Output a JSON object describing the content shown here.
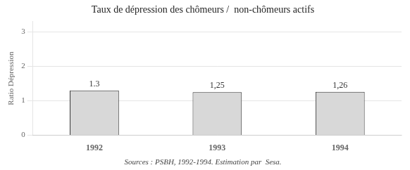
{
  "chart_data": {
    "type": "bar",
    "title": "Taux de dépression des chômeurs /  non-chômeurs actifs",
    "caption": "Sources : PSBH, 1992-1994. Estimation par  Sesa.",
    "ylabel": "Ratio Dépression",
    "categories": [
      "1992",
      "1993",
      "1994"
    ],
    "values": [
      1.3,
      1.25,
      1.26
    ],
    "value_labels": [
      "1.3",
      "1,25",
      "1,26"
    ],
    "data_labels": true,
    "color": "#d8d8d8",
    "ylim": [
      0,
      3.3
    ],
    "yticks": [
      0,
      1,
      2,
      3
    ],
    "grid": true
  }
}
